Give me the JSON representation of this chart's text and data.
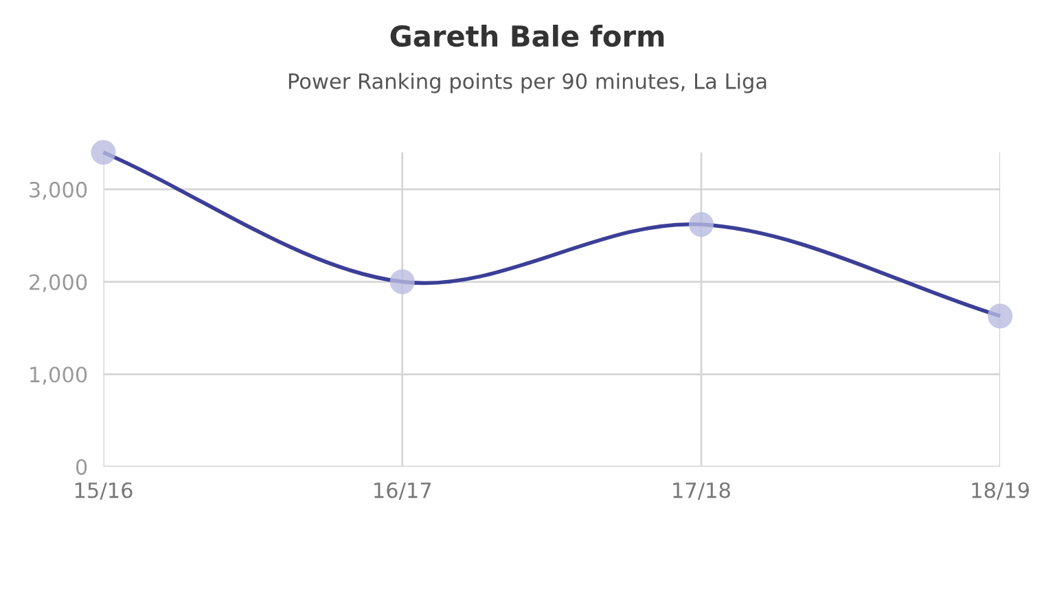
{
  "chart_data": {
    "type": "line",
    "title": "Gareth Bale form",
    "subtitle": "Power Ranking points per 90 minutes, La Liga",
    "categories": [
      "15/16",
      "16/17",
      "17/18",
      "18/19"
    ],
    "series": [
      {
        "color": "#3b3f97",
        "values": [
          3400,
          2000,
          2620,
          1630
        ]
      }
    ],
    "ylim": [
      0,
      3400
    ],
    "yticks": [
      {
        "value": 0,
        "label": "0"
      },
      {
        "value": 1000,
        "label": "1,000"
      },
      {
        "value": 2000,
        "label": "2,000"
      },
      {
        "value": 3000,
        "label": "3,000"
      }
    ],
    "grid": true,
    "marker": "circle",
    "line_style": "solid"
  }
}
